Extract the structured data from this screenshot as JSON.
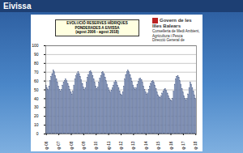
{
  "header": "Eivissa",
  "logo": [
    "Govern de les Illes Balears",
    "Conselleria de Medi Ambient, Agricultura i Pesca",
    "Direcció General de Recursos Hídrics"
  ],
  "chart_data": {
    "type": "bar",
    "title": "EVOLUCIÓ RESERVES HÍDRIQUES PONDERADES A EIVISSA",
    "subtitle": "(agost 2006 - agost 2018)",
    "color": "#8a9cc2",
    "grid": true,
    "ylim": [
      0,
      100
    ],
    "yticks": [
      0,
      10,
      20,
      30,
      40,
      50,
      60,
      70,
      80,
      90,
      100
    ],
    "categories": [
      "ag-06",
      null,
      null,
      null,
      null,
      null,
      null,
      null,
      null,
      null,
      null,
      null,
      "ag-07",
      null,
      null,
      null,
      null,
      null,
      null,
      null,
      null,
      null,
      null,
      null,
      "ag-08",
      null,
      null,
      null,
      null,
      null,
      null,
      null,
      null,
      null,
      null,
      null,
      "ag-09",
      null,
      null,
      null,
      null,
      null,
      null,
      null,
      null,
      null,
      null,
      null,
      "ag-10",
      null,
      null,
      null,
      null,
      null,
      null,
      null,
      null,
      null,
      null,
      null,
      "ag-11",
      null,
      null,
      null,
      null,
      null,
      null,
      null,
      null,
      null,
      null,
      null,
      "ag-12",
      null,
      null,
      null,
      null,
      null,
      null,
      null,
      null,
      null,
      null,
      null,
      "ag-13",
      null,
      null,
      null,
      null,
      null,
      null,
      null,
      null,
      null,
      null,
      null,
      "ag-14",
      null,
      null,
      null,
      null,
      null,
      null,
      null,
      null,
      null,
      null,
      null,
      "ag-15",
      null,
      null,
      null,
      null,
      null,
      null,
      null,
      null,
      null,
      null,
      null,
      "ag-16",
      null,
      null,
      null,
      null,
      null,
      null,
      null,
      null,
      null,
      null,
      null,
      "ag-17",
      null,
      null,
      null,
      null,
      null,
      null,
      null,
      null,
      null,
      null,
      null,
      "ag-18"
    ],
    "values": [
      55,
      52,
      50,
      54,
      60,
      65,
      68,
      72,
      70,
      66,
      62,
      58,
      54,
      50,
      48,
      50,
      55,
      58,
      60,
      62,
      60,
      57,
      54,
      50,
      47,
      45,
      48,
      55,
      62,
      66,
      68,
      70,
      68,
      65,
      61,
      57,
      53,
      50,
      52,
      58,
      64,
      67,
      70,
      71,
      69,
      66,
      62,
      58,
      54,
      51,
      53,
      58,
      63,
      66,
      69,
      70,
      68,
      64,
      60,
      56,
      52,
      49,
      47,
      49,
      52,
      55,
      58,
      60,
      58,
      55,
      52,
      48,
      45,
      44,
      47,
      54,
      62,
      67,
      70,
      72,
      70,
      67,
      63,
      59,
      55,
      52,
      50,
      52,
      56,
      59,
      62,
      63,
      61,
      58,
      54,
      50,
      47,
      45,
      46,
      50,
      54,
      57,
      59,
      60,
      58,
      55,
      51,
      47,
      44,
      42,
      41,
      43,
      46,
      48,
      50,
      51,
      49,
      46,
      43,
      40,
      38,
      37,
      40,
      48,
      56,
      62,
      65,
      66,
      64,
      60,
      56,
      51,
      47,
      43,
      40,
      38,
      40,
      45,
      52,
      58,
      56,
      52,
      48,
      44,
      40
    ]
  }
}
